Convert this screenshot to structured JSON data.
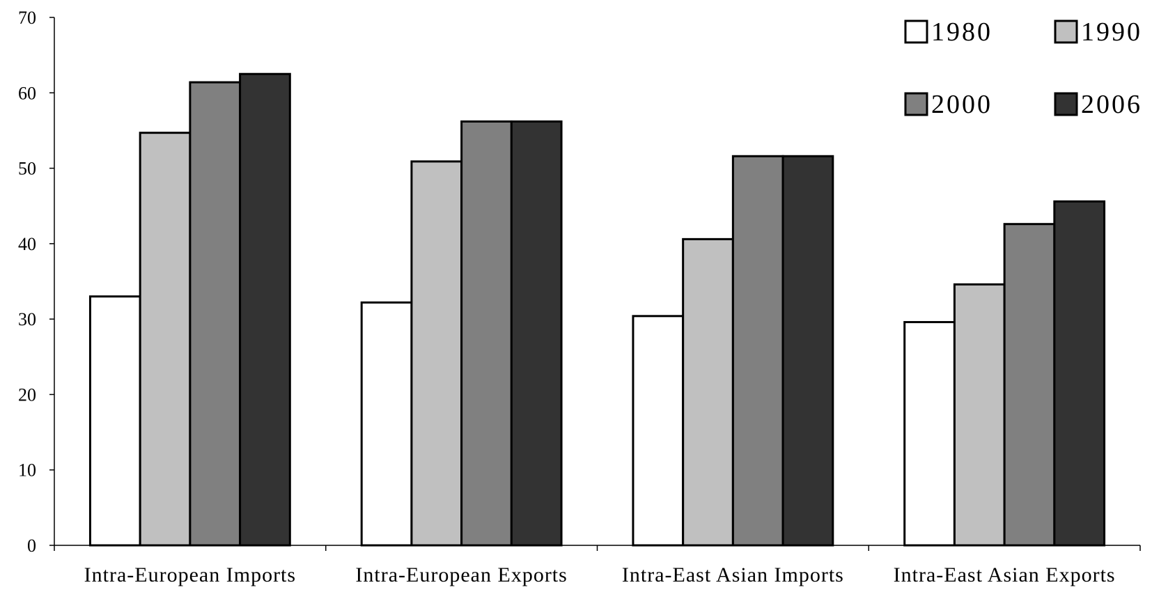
{
  "chart_data": {
    "type": "bar",
    "categories": [
      "Intra-European Imports",
      "Intra-European Exports",
      "Intra-East Asian Imports",
      "Intra-East Asian Exports"
    ],
    "series": [
      {
        "name": "1980",
        "color": "#ffffff",
        "values": [
          33.0,
          32.2,
          30.4,
          29.6
        ]
      },
      {
        "name": "1990",
        "color": "#c0c0c0",
        "values": [
          54.7,
          50.9,
          40.6,
          34.6
        ]
      },
      {
        "name": "2000",
        "color": "#808080",
        "values": [
          61.4,
          56.2,
          51.6,
          42.6
        ]
      },
      {
        "name": "2006",
        "color": "#333333",
        "values": [
          62.5,
          56.2,
          51.6,
          45.6
        ]
      }
    ],
    "yticks": [
      "0",
      "10",
      "20",
      "30",
      "40",
      "50",
      "60",
      "70"
    ],
    "ylim": [
      0,
      70
    ],
    "title": "",
    "xlabel": "",
    "ylabel": "",
    "legend_position": "top-right",
    "grid": false
  }
}
